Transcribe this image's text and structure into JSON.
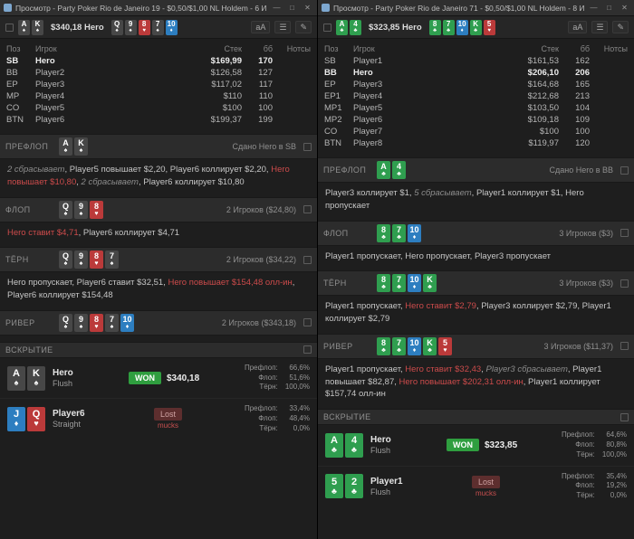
{
  "colors": {
    "spade_card": "#474747",
    "heart_card": "#bb3a3a",
    "diamond_card": "#2d7ec0",
    "club_card": "#2f9e4f",
    "hero_action": "#cc4b4b",
    "won_badge": "#2f9e3f",
    "lost_badge_bg": "#5d2e2e",
    "muck_text": "#c74f4f"
  },
  "windows": [
    {
      "title": "Просмотр - Party Poker Rio de Janeiro 19 - $0,50/$1,00 NL Holdem - 6 Игр...",
      "controls": {
        "minimize": "—",
        "maximize": "□",
        "close": "✕"
      },
      "toolbar": {
        "hero_cards": [
          {
            "rank": "A",
            "suit": "spade"
          },
          {
            "rank": "K",
            "suit": "spade"
          }
        ],
        "hero_label": "$340,18 Hero",
        "board_cards": [
          {
            "rank": "Q",
            "suit": "spade"
          },
          {
            "rank": "9",
            "suit": "spade"
          },
          {
            "rank": "8",
            "suit": "heart"
          },
          {
            "rank": "7",
            "suit": "spade"
          },
          {
            "rank": "10",
            "suit": "diamond"
          }
        ],
        "icons": [
          {
            "name": "font-size-button",
            "glyph": "aA"
          },
          {
            "name": "list-view-button",
            "glyph": "☰"
          },
          {
            "name": "edit-button",
            "glyph": "✎"
          }
        ]
      },
      "table": {
        "headers": [
          "Поз",
          "Игрок",
          "Стек",
          "бб",
          "Нотсы"
        ],
        "rows": [
          {
            "pos": "SB",
            "player": "Hero",
            "stack": "$169,99",
            "bb": "170",
            "hero": true
          },
          {
            "pos": "BB",
            "player": "Player2",
            "stack": "$126,58",
            "bb": "127",
            "hero": false
          },
          {
            "pos": "EP",
            "player": "Player3",
            "stack": "$117,02",
            "bb": "117",
            "hero": false
          },
          {
            "pos": "MP",
            "player": "Player4",
            "stack": "$110",
            "bb": "110",
            "hero": false
          },
          {
            "pos": "CO",
            "player": "Player5",
            "stack": "$100",
            "bb": "100",
            "hero": false
          },
          {
            "pos": "BTN",
            "player": "Player6",
            "stack": "$199,37",
            "bb": "199",
            "hero": false
          }
        ]
      },
      "streets": [
        {
          "key": "preflop",
          "name": "ПРЕФЛОП",
          "cards": [
            {
              "rank": "A",
              "suit": "spade"
            },
            {
              "rank": "K",
              "suit": "spade"
            }
          ],
          "info": "Сдано Hero в SB",
          "actions": [
            {
              "t": "2 сбрасывает",
              "s": "fold"
            },
            {
              "t": ", Player5 повышает $2,20, Player6 коллирует $2,20, ",
              "s": "n"
            },
            {
              "t": "Hero повышает $10,80",
              "s": "hero"
            },
            {
              "t": ", ",
              "s": "n"
            },
            {
              "t": "2 сбрасывает",
              "s": "fold"
            },
            {
              "t": ", Player6 коллирует $10,80",
              "s": "n"
            }
          ]
        },
        {
          "key": "flop",
          "name": "ФЛОП",
          "cards": [
            {
              "rank": "Q",
              "suit": "spade"
            },
            {
              "rank": "9",
              "suit": "spade"
            },
            {
              "rank": "8",
              "suit": "heart"
            }
          ],
          "info": "2 Игроков ($24,80)",
          "actions": [
            {
              "t": "Hero ставит $4,71",
              "s": "hero"
            },
            {
              "t": ", Player6 коллирует $4,71",
              "s": "n"
            }
          ]
        },
        {
          "key": "turn",
          "name": "ТЁРН",
          "cards": [
            {
              "rank": "Q",
              "suit": "spade"
            },
            {
              "rank": "9",
              "suit": "spade"
            },
            {
              "rank": "8",
              "suit": "heart"
            },
            {
              "rank": "7",
              "suit": "spade"
            }
          ],
          "info": "2 Игроков ($34,22)",
          "actions": [
            {
              "t": "Hero пропускает, Player6 ставит $32,51, ",
              "s": "n"
            },
            {
              "t": "Hero повышает $154,48 олл-ин",
              "s": "hero"
            },
            {
              "t": ", Player6 коллирует $154,48",
              "s": "n"
            }
          ]
        },
        {
          "key": "river",
          "name": "РИВЕР",
          "cards": [
            {
              "rank": "Q",
              "suit": "spade"
            },
            {
              "rank": "9",
              "suit": "spade"
            },
            {
              "rank": "8",
              "suit": "heart"
            },
            {
              "rank": "7",
              "suit": "spade"
            },
            {
              "rank": "10",
              "suit": "diamond"
            }
          ],
          "info": "2 Игроков ($343,18)",
          "actions": []
        }
      ],
      "showdown": {
        "title": "ВСКРЫТИЕ",
        "rows": [
          {
            "cards": [
              {
                "rank": "A",
                "suit": "spade"
              },
              {
                "rank": "K",
                "suit": "spade"
              }
            ],
            "player": "Hero",
            "hand": "Flush",
            "won": true,
            "badge": "WON",
            "amount": "$340,18",
            "stats": [
              {
                "label": "Префлоп:",
                "value": "66,6%"
              },
              {
                "label": "Флоп:",
                "value": "51,6%"
              },
              {
                "label": "Тёрн:",
                "value": "100,0%"
              }
            ]
          },
          {
            "cards": [
              {
                "rank": "J",
                "suit": "diamond"
              },
              {
                "rank": "Q",
                "suit": "heart"
              }
            ],
            "player": "Player6",
            "hand": "Straight",
            "won": false,
            "badge": "Lost",
            "muck": "mucks",
            "stats": [
              {
                "label": "Префлоп:",
                "value": "33,4%"
              },
              {
                "label": "Флоп:",
                "value": "48,4%"
              },
              {
                "label": "Тёрн:",
                "value": "0,0%"
              }
            ]
          }
        ]
      }
    },
    {
      "title": "Просмотр - Party Poker Rio de Janeiro 71 - $0,50/$1,00 NL Holdem - 8 Игр...",
      "controls": {
        "minimize": "—",
        "maximize": "□",
        "close": "✕"
      },
      "toolbar": {
        "hero_cards": [
          {
            "rank": "A",
            "suit": "club"
          },
          {
            "rank": "4",
            "suit": "club"
          }
        ],
        "hero_label": "$323,85 Hero",
        "board_cards": [
          {
            "rank": "8",
            "suit": "club"
          },
          {
            "rank": "7",
            "suit": "club"
          },
          {
            "rank": "10",
            "suit": "diamond"
          },
          {
            "rank": "K",
            "suit": "club"
          },
          {
            "rank": "5",
            "suit": "heart"
          }
        ],
        "icons": [
          {
            "name": "font-size-button",
            "glyph": "aA"
          },
          {
            "name": "list-view-button",
            "glyph": "☰"
          },
          {
            "name": "edit-button",
            "glyph": "✎"
          }
        ]
      },
      "table": {
        "headers": [
          "Поз",
          "Игрок",
          "Стек",
          "бб",
          "Нотсы"
        ],
        "rows": [
          {
            "pos": "SB",
            "player": "Player1",
            "stack": "$161,53",
            "bb": "162",
            "hero": false
          },
          {
            "pos": "BB",
            "player": "Hero",
            "stack": "$206,10",
            "bb": "206",
            "hero": true
          },
          {
            "pos": "EP",
            "player": "Player3",
            "stack": "$164,68",
            "bb": "165",
            "hero": false
          },
          {
            "pos": "EP1",
            "player": "Player4",
            "stack": "$212,68",
            "bb": "213",
            "hero": false
          },
          {
            "pos": "MP1",
            "player": "Player5",
            "stack": "$103,50",
            "bb": "104",
            "hero": false
          },
          {
            "pos": "MP2",
            "player": "Player6",
            "stack": "$109,18",
            "bb": "109",
            "hero": false
          },
          {
            "pos": "CO",
            "player": "Player7",
            "stack": "$100",
            "bb": "100",
            "hero": false
          },
          {
            "pos": "BTN",
            "player": "Player8",
            "stack": "$119,97",
            "bb": "120",
            "hero": false
          }
        ]
      },
      "streets": [
        {
          "key": "preflop",
          "name": "ПРЕФЛОП",
          "cards": [
            {
              "rank": "A",
              "suit": "club"
            },
            {
              "rank": "4",
              "suit": "club"
            }
          ],
          "info": "Сдано Hero в BB",
          "actions": [
            {
              "t": "Player3 коллирует $1, ",
              "s": "n"
            },
            {
              "t": "5 сбрасывает",
              "s": "fold"
            },
            {
              "t": ", Player1 коллирует $1, Hero пропускает",
              "s": "n"
            }
          ]
        },
        {
          "key": "flop",
          "name": "ФЛОП",
          "cards": [
            {
              "rank": "8",
              "suit": "club"
            },
            {
              "rank": "7",
              "suit": "club"
            },
            {
              "rank": "10",
              "suit": "diamond"
            }
          ],
          "info": "3 Игроков ($3)",
          "actions": [
            {
              "t": "Player1 пропускает, Hero пропускает, Player3 пропускает",
              "s": "n"
            }
          ]
        },
        {
          "key": "turn",
          "name": "ТЁРН",
          "cards": [
            {
              "rank": "8",
              "suit": "club"
            },
            {
              "rank": "7",
              "suit": "club"
            },
            {
              "rank": "10",
              "suit": "diamond"
            },
            {
              "rank": "K",
              "suit": "club"
            }
          ],
          "info": "3 Игроков ($3)",
          "actions": [
            {
              "t": "Player1 пропускает, ",
              "s": "n"
            },
            {
              "t": "Hero ставит $2,79",
              "s": "hero"
            },
            {
              "t": ", Player3 коллирует $2,79, Player1 коллирует $2,79",
              "s": "n"
            }
          ]
        },
        {
          "key": "river",
          "name": "РИВЕР",
          "cards": [
            {
              "rank": "8",
              "suit": "club"
            },
            {
              "rank": "7",
              "suit": "club"
            },
            {
              "rank": "10",
              "suit": "diamond"
            },
            {
              "rank": "K",
              "suit": "club"
            },
            {
              "rank": "5",
              "suit": "heart"
            }
          ],
          "info": "3 Игроков ($11,37)",
          "actions": [
            {
              "t": "Player1 пропускает, ",
              "s": "n"
            },
            {
              "t": "Hero ставит $32,43",
              "s": "hero"
            },
            {
              "t": ", ",
              "s": "n"
            },
            {
              "t": "Player3 сбрасывает",
              "s": "fold"
            },
            {
              "t": ", Player1 повышает $82,87, ",
              "s": "n"
            },
            {
              "t": "Hero повышает $202,31 олл-ин",
              "s": "hero"
            },
            {
              "t": ", Player1 коллирует $157,74 олл-ин",
              "s": "n"
            }
          ]
        }
      ],
      "showdown": {
        "title": "ВСКРЫТИЕ",
        "rows": [
          {
            "cards": [
              {
                "rank": "A",
                "suit": "club"
              },
              {
                "rank": "4",
                "suit": "club"
              }
            ],
            "player": "Hero",
            "hand": "Flush",
            "won": true,
            "badge": "WON",
            "amount": "$323,85",
            "stats": [
              {
                "label": "Префлоп:",
                "value": "64,6%"
              },
              {
                "label": "Флоп:",
                "value": "80,8%"
              },
              {
                "label": "Тёрн:",
                "value": "100,0%"
              }
            ]
          },
          {
            "cards": [
              {
                "rank": "5",
                "suit": "club"
              },
              {
                "rank": "2",
                "suit": "club"
              }
            ],
            "player": "Player1",
            "hand": "Flush",
            "won": false,
            "badge": "Lost",
            "muck": "mucks",
            "stats": [
              {
                "label": "Префлоп:",
                "value": "35,4%"
              },
              {
                "label": "Флоп:",
                "value": "19,2%"
              },
              {
                "label": "Тёрн:",
                "value": "0,0%"
              }
            ]
          }
        ]
      }
    }
  ]
}
